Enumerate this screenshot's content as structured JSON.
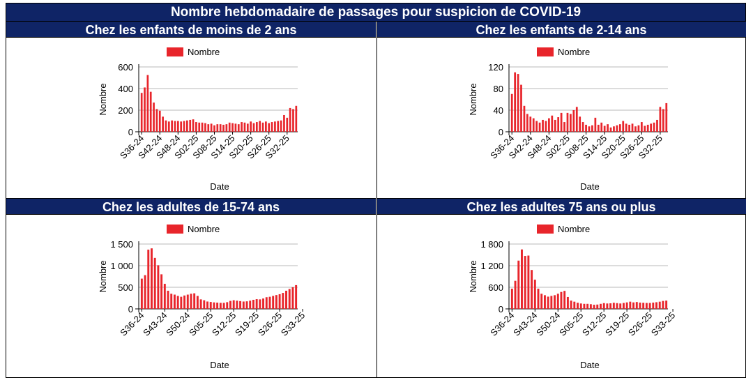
{
  "main_title": "Nombre hebdomadaire de passages pour suspicion de COVID-19",
  "colors": {
    "header_bg": "#0f2466",
    "bar": "#e8252b",
    "grid": "#c8c8c8"
  },
  "chart_data": [
    {
      "type": "bar",
      "title": "Chez les enfants de moins de 2 ans",
      "xlabel": "Date",
      "ylabel": "Nombre",
      "legend": "Nombre",
      "legend_position": "top",
      "grid": true,
      "ylim": [
        0,
        600
      ],
      "yticks": [
        0,
        200,
        400,
        600
      ],
      "ytick_labels": [
        "0",
        "200",
        "400",
        "600"
      ],
      "xtick_labels": [
        "S36-24",
        "S42-24",
        "S48-24",
        "S02-25",
        "S08-25",
        "S14-25",
        "S20-25",
        "S26-25",
        "S32-25"
      ],
      "xtick_indices": [
        0,
        6,
        12,
        18,
        24,
        30,
        36,
        42,
        48
      ],
      "values": [
        360,
        410,
        525,
        370,
        270,
        210,
        195,
        140,
        105,
        95,
        105,
        100,
        100,
        95,
        100,
        105,
        110,
        115,
        90,
        85,
        85,
        80,
        70,
        75,
        60,
        70,
        70,
        65,
        70,
        85,
        80,
        75,
        70,
        90,
        85,
        75,
        95,
        80,
        90,
        100,
        85,
        95,
        80,
        90,
        95,
        100,
        105,
        155,
        130,
        220,
        210,
        240
      ]
    },
    {
      "type": "bar",
      "title": "Chez les enfants de 2-14 ans",
      "xlabel": "Date",
      "ylabel": "Nombre",
      "legend": "Nombre",
      "legend_position": "top",
      "grid": true,
      "ylim": [
        0,
        120
      ],
      "yticks": [
        0,
        40,
        80,
        120
      ],
      "ytick_labels": [
        "0",
        "40",
        "80",
        "120"
      ],
      "xtick_labels": [
        "S36-24",
        "S42-24",
        "S48-24",
        "S02-25",
        "S08-25",
        "S14-25",
        "S20-25",
        "S26-25",
        "S32-25"
      ],
      "xtick_indices": [
        0,
        6,
        12,
        18,
        24,
        30,
        36,
        42,
        48
      ],
      "values": [
        70,
        110,
        107,
        87,
        48,
        33,
        28,
        25,
        20,
        17,
        22,
        20,
        25,
        30,
        22,
        27,
        35,
        18,
        35,
        33,
        40,
        46,
        28,
        18,
        13,
        10,
        12,
        26,
        13,
        17,
        11,
        14,
        8,
        10,
        12,
        14,
        20,
        15,
        13,
        15,
        10,
        12,
        18,
        11,
        13,
        15,
        17,
        22,
        46,
        42,
        53
      ]
    },
    {
      "type": "bar",
      "title": "Chez les adultes de 15-74 ans",
      "xlabel": "Date",
      "ylabel": "Nombre",
      "legend": "Nombre",
      "legend_position": "top",
      "grid": true,
      "ylim": [
        0,
        1500
      ],
      "yticks": [
        0,
        500,
        1000,
        1500
      ],
      "ytick_labels": [
        "0",
        "500",
        "1 000",
        "1 500"
      ],
      "xtick_labels": [
        "S36-24",
        "S43-24",
        "S50-24",
        "S05-25",
        "S12-25",
        "S19-25",
        "S26-25",
        "S33-25"
      ],
      "xtick_indices": [
        0,
        7,
        14,
        21,
        28,
        35,
        42,
        49
      ],
      "values": [
        700,
        780,
        1370,
        1400,
        1180,
        1010,
        800,
        580,
        420,
        350,
        330,
        300,
        280,
        310,
        330,
        350,
        360,
        300,
        220,
        200,
        170,
        160,
        150,
        145,
        140,
        140,
        155,
        185,
        200,
        190,
        180,
        170,
        175,
        190,
        210,
        225,
        220,
        240,
        270,
        280,
        300,
        320,
        340,
        370,
        420,
        460,
        500,
        550
      ]
    },
    {
      "type": "bar",
      "title": "Chez les adultes 75 ans ou plus",
      "xlabel": "Date",
      "ylabel": "Nombre",
      "legend": "Nombre",
      "legend_position": "top",
      "grid": true,
      "ylim": [
        0,
        1800
      ],
      "yticks": [
        0,
        600,
        1200,
        1800
      ],
      "ytick_labels": [
        "0",
        "600",
        "1 200",
        "1 800"
      ],
      "xtick_labels": [
        "S36-24",
        "S43-24",
        "S50-24",
        "S05-25",
        "S12-25",
        "S19-25",
        "S26-25",
        "S33-25"
      ],
      "xtick_indices": [
        0,
        7,
        14,
        21,
        28,
        35,
        42,
        49
      ],
      "values": [
        560,
        780,
        1340,
        1650,
        1470,
        1480,
        1080,
        810,
        560,
        420,
        380,
        340,
        360,
        380,
        420,
        470,
        500,
        330,
        230,
        200,
        170,
        150,
        140,
        140,
        130,
        115,
        120,
        140,
        160,
        150,
        155,
        170,
        160,
        150,
        165,
        180,
        200,
        180,
        190,
        175,
        170,
        165,
        165,
        175,
        185,
        200,
        220,
        230
      ]
    }
  ]
}
